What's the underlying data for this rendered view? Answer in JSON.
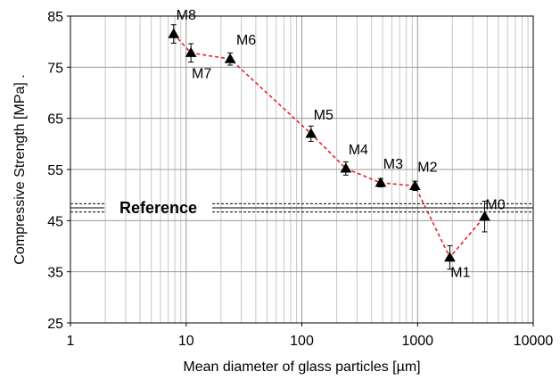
{
  "chart_data": {
    "type": "scatter",
    "xlabel": "Mean diameter of glass particles [µm]",
    "ylabel": "Compressive Strength [MPa] .",
    "x_scale": "log",
    "xlim": [
      1,
      10000
    ],
    "ylim": [
      25,
      85
    ],
    "x_ticks": [
      "1",
      "10",
      "100",
      "1000",
      "10000"
    ],
    "y_ticks": [
      "25",
      "35",
      "45",
      "55",
      "65",
      "75",
      "85"
    ],
    "grid": true,
    "series": [
      {
        "marker": "triangle",
        "line_style": "dashed",
        "line_color": "#e8202a",
        "marker_color": "#000000",
        "points": [
          {
            "label": "M8",
            "x": 7.8,
            "y": 81.5,
            "err": 1.8
          },
          {
            "label": "M7",
            "x": 11,
            "y": 77.8,
            "err": 1.8
          },
          {
            "label": "M6",
            "x": 24,
            "y": 76.6,
            "err": 1.2
          },
          {
            "label": "M5",
            "x": 120,
            "y": 62,
            "err": 1.5
          },
          {
            "label": "M4",
            "x": 240,
            "y": 55.2,
            "err": 1.3
          },
          {
            "label": "M3",
            "x": 480,
            "y": 52.4,
            "err": 0.8
          },
          {
            "label": "M2",
            "x": 950,
            "y": 51.8,
            "err": 0.9
          },
          {
            "label": "M1",
            "x": 1900,
            "y": 37.8,
            "err": 2.3
          },
          {
            "label": "M0",
            "x": 3800,
            "y": 45.8,
            "err": 3.0
          }
        ]
      }
    ],
    "reference": {
      "label": "Reference",
      "value": 47.5,
      "lower": 46.7,
      "upper": 48.3
    }
  }
}
